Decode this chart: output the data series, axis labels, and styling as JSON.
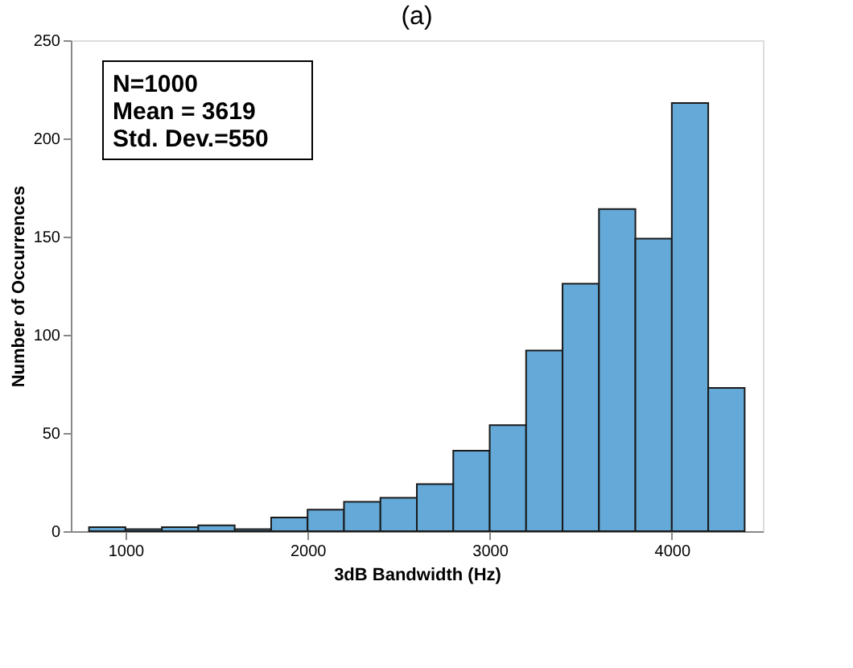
{
  "chart_data": {
    "type": "histogram",
    "title": "(a)",
    "xlabel": "3dB Bandwidth (Hz)",
    "ylabel": "Number of Occurrences",
    "bins": [
      800,
      1000,
      1200,
      1400,
      1600,
      1800,
      2000,
      2200,
      2400,
      2600,
      2800,
      3000,
      3200,
      3400,
      3600,
      3800,
      4000,
      4200,
      4400
    ],
    "values": [
      2,
      1,
      2,
      3,
      1,
      7,
      11,
      15,
      17,
      24,
      41,
      54,
      92,
      126,
      164,
      149,
      218,
      73
    ],
    "color": "#64a9d7",
    "xlim": [
      700,
      4500
    ],
    "xticks": [
      1000,
      2000,
      3000,
      4000
    ],
    "ylim": [
      0,
      250
    ],
    "yticks": [
      0,
      50,
      100,
      150,
      200,
      250
    ],
    "grid": false,
    "annotations": [
      "N=1000",
      "Mean = 3619",
      "Std. Dev.=550"
    ]
  }
}
